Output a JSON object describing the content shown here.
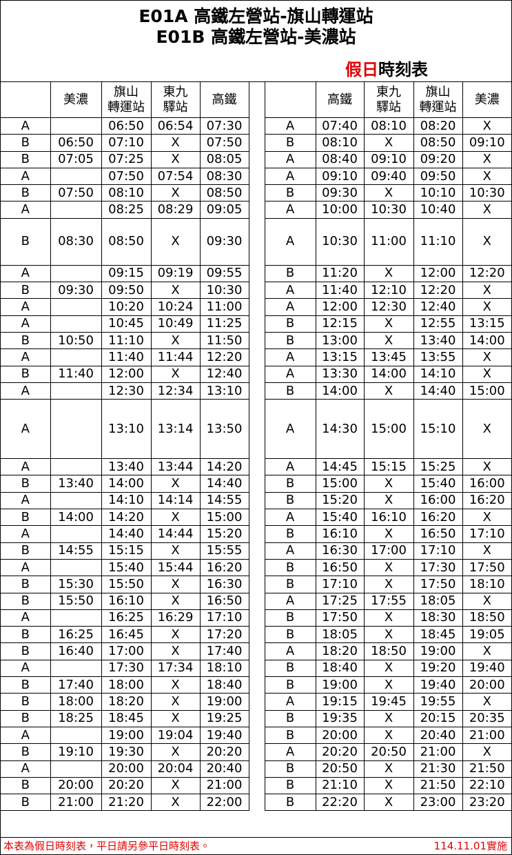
{
  "title": [
    "E01A 高鐵左營站-旗山轉運站",
    "E01B 高鐵左營站-美濃站"
  ],
  "subtitle": {
    "highlight": "假日",
    "text": "時刻表"
  },
  "table": {
    "left_header": [
      null,
      "美濃",
      "旗山\n轉運站",
      "東九\n驛站",
      "高鐵"
    ],
    "right_header": [
      null,
      "高鐵",
      "東九\n驛站",
      "旗山\n轉運站",
      "美濃"
    ],
    "rows": [
      {
        "left": [
          "A",
          null,
          "06:50",
          "06:54",
          "07:30"
        ],
        "right": [
          "A",
          "07:40",
          "08:10",
          "08:20",
          "X"
        ]
      },
      {
        "left": [
          "B",
          "06:50",
          "07:10",
          "X",
          "07:50"
        ],
        "right": [
          "B",
          "08:10",
          "X",
          "08:50",
          "09:10"
        ]
      },
      {
        "left": [
          "B",
          "07:05",
          "07:25",
          "X",
          "08:05"
        ],
        "right": [
          "A",
          "08:40",
          "09:10",
          "09:20",
          "X"
        ]
      },
      {
        "left": [
          "A",
          null,
          "07:50",
          "07:54",
          "08:30"
        ],
        "right": [
          "A",
          "09:10",
          "09:40",
          "09:50",
          "X"
        ]
      },
      {
        "left": [
          "B",
          "07:50",
          "08:10",
          "X",
          "08:50"
        ],
        "right": [
          "B",
          "09:30",
          "X",
          "10:10",
          "10:30"
        ]
      },
      {
        "left": [
          "A",
          null,
          "08:25",
          "08:29",
          "09:05"
        ],
        "right": [
          "A",
          "10:00",
          "10:30",
          "10:40",
          "X"
        ]
      },
      {
        "left": [
          "B",
          "08:30",
          "08:50",
          "X",
          "09:30"
        ],
        "right": [
          "A",
          "10:30",
          "11:00",
          "11:10",
          "X"
        ]
      },
      {
        "left": [
          "A",
          null,
          "09:15",
          "09:19",
          "09:55"
        ],
        "right": [
          "B",
          "11:20",
          "X",
          "12:00",
          "12:20"
        ]
      },
      {
        "left": [
          "B",
          "09:30",
          "09:50",
          "X",
          "10:30"
        ],
        "right": [
          "A",
          "11:40",
          "12:10",
          "12:20",
          "X"
        ]
      },
      {
        "left": [
          "A",
          null,
          "10:20",
          "10:24",
          "11:00"
        ],
        "right": [
          "A",
          "12:00",
          "12:30",
          "12:40",
          "X"
        ]
      },
      {
        "left": [
          "A",
          null,
          "10:45",
          "10:49",
          "11:25"
        ],
        "right": [
          "B",
          "12:15",
          "X",
          "12:55",
          "13:15"
        ]
      },
      {
        "left": [
          "B",
          "10:50",
          "11:10",
          "X",
          "11:50"
        ],
        "right": [
          "B",
          "13:00",
          "X",
          "13:40",
          "14:00"
        ]
      },
      {
        "left": [
          "A",
          null,
          "11:40",
          "11:44",
          "12:20"
        ],
        "right": [
          "A",
          "13:15",
          "13:45",
          "13:55",
          "X"
        ]
      },
      {
        "left": [
          "B",
          "11:40",
          "12:00",
          "X",
          "12:40"
        ],
        "right": [
          "A",
          "13:30",
          "14:00",
          "14:10",
          "X"
        ]
      },
      {
        "left": [
          "A",
          null,
          "12:30",
          "12:34",
          "13:10"
        ],
        "right": [
          "B",
          "14:00",
          "X",
          "14:40",
          "15:00"
        ]
      },
      {
        "left": [
          "A",
          null,
          "13:10",
          "13:14",
          "13:50"
        ],
        "right": [
          "A",
          "14:30",
          "15:00",
          "15:10",
          "X"
        ]
      },
      {
        "left": [
          "A",
          null,
          "13:40",
          "13:44",
          "14:20"
        ],
        "right": [
          "A",
          "14:45",
          "15:15",
          "15:25",
          "X"
        ]
      },
      {
        "left": [
          "B",
          "13:40",
          "14:00",
          "X",
          "14:40"
        ],
        "right": [
          "B",
          "15:00",
          "X",
          "15:40",
          "16:00"
        ]
      },
      {
        "left": [
          "A",
          null,
          "14:10",
          "14:14",
          "14:55"
        ],
        "right": [
          "B",
          "15:20",
          "X",
          "16:00",
          "16:20"
        ]
      },
      {
        "left": [
          "B",
          "14:00",
          "14:20",
          "X",
          "15:00"
        ],
        "right": [
          "A",
          "15:40",
          "16:10",
          "16:20",
          "X"
        ]
      },
      {
        "left": [
          "A",
          null,
          "14:40",
          "14:44",
          "15:20"
        ],
        "right": [
          "B",
          "16:10",
          "X",
          "16:50",
          "17:10"
        ]
      },
      {
        "left": [
          "B",
          "14:55",
          "15:15",
          "X",
          "15:55"
        ],
        "right": [
          "A",
          "16:30",
          "17:00",
          "17:10",
          "X"
        ]
      },
      {
        "left": [
          "A",
          null,
          "15:40",
          "15:44",
          "16:20"
        ],
        "right": [
          "B",
          "16:50",
          "X",
          "17:30",
          "17:50"
        ]
      },
      {
        "left": [
          "B",
          "15:30",
          "15:50",
          "X",
          "16:30"
        ],
        "right": [
          "B",
          "17:10",
          "X",
          "17:50",
          "18:10"
        ]
      },
      {
        "left": [
          "B",
          "15:50",
          "16:10",
          "X",
          "16:50"
        ],
        "right": [
          "A",
          "17:25",
          "17:55",
          "18:05",
          "X"
        ]
      },
      {
        "left": [
          "A",
          null,
          "16:25",
          "16:29",
          "17:10"
        ],
        "right": [
          "B",
          "17:50",
          "X",
          "18:30",
          "18:50"
        ]
      },
      {
        "left": [
          "B",
          "16:25",
          "16:45",
          "X",
          "17:20"
        ],
        "right": [
          "B",
          "18:05",
          "X",
          "18:45",
          "19:05"
        ]
      },
      {
        "left": [
          "B",
          "16:40",
          "17:00",
          "X",
          "17:40"
        ],
        "right": [
          "A",
          "18:20",
          "18:50",
          "19:00",
          "X"
        ]
      },
      {
        "left": [
          "A",
          null,
          "17:30",
          "17:34",
          "18:10"
        ],
        "right": [
          "B",
          "18:40",
          "X",
          "19:20",
          "19:40"
        ]
      },
      {
        "left": [
          "B",
          "17:40",
          "18:00",
          "X",
          "18:40"
        ],
        "right": [
          "B",
          "19:00",
          "X",
          "19:40",
          "20:00"
        ]
      },
      {
        "left": [
          "B",
          "18:00",
          "18:20",
          "X",
          "19:00"
        ],
        "right": [
          "A",
          "19:15",
          "19:45",
          "19:55",
          "X"
        ]
      },
      {
        "left": [
          "B",
          "18:25",
          "18:45",
          "X",
          "19:25"
        ],
        "right": [
          "B",
          "19:35",
          "X",
          "20:15",
          "20:35"
        ]
      },
      {
        "left": [
          "A",
          null,
          "19:00",
          "19:04",
          "19:40"
        ],
        "right": [
          "B",
          "20:00",
          "X",
          "20:40",
          "21:00"
        ]
      },
      {
        "left": [
          "B",
          "19:10",
          "19:30",
          "X",
          "20:20"
        ],
        "right": [
          "A",
          "20:20",
          "20:50",
          "21:00",
          "X"
        ]
      },
      {
        "left": [
          "A",
          null,
          "20:00",
          "20:04",
          "20:40"
        ],
        "right": [
          "B",
          "20:50",
          "X",
          "21:30",
          "21:50"
        ]
      },
      {
        "left": [
          "B",
          "20:00",
          "20:20",
          "X",
          "21:00"
        ],
        "right": [
          "B",
          "21:10",
          "X",
          "21:50",
          "22:10"
        ]
      },
      {
        "left": [
          "B",
          "21:00",
          "21:20",
          "X",
          "22:00"
        ],
        "right": [
          "B",
          "22:20",
          "X",
          "23:00",
          "23:20"
        ]
      }
    ]
  },
  "footer": {
    "note": "本表為假日時刻表，平日請另參平日時刻表。",
    "effective": "114.11.01實施"
  }
}
